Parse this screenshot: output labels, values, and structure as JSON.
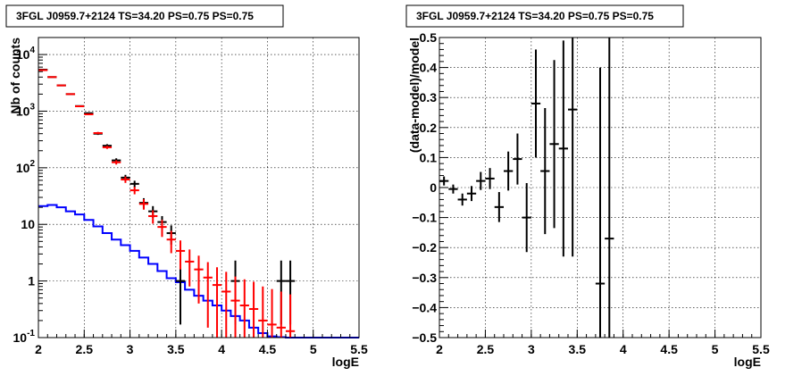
{
  "chart_data": [
    {
      "type": "step",
      "title": "3FGL J0959.7+2124 TS=34.20 PS=0.75 PS=0.75",
      "xlabel": "logE",
      "ylabel": "Nb of counts",
      "yscale": "log",
      "xlim": [
        2,
        5.5
      ],
      "ylim": [
        0.1,
        20000
      ],
      "xticks": [
        "2",
        "2.5",
        "3",
        "3.5",
        "4",
        "4.5",
        "5",
        "5.5"
      ],
      "yticks": [
        "10^-1",
        "1",
        "10",
        "10^2",
        "10^3",
        "10^4"
      ],
      "grid": true,
      "bin_width": 0.1,
      "series": [
        {
          "role": "data",
          "color": "#000000",
          "x": [
            2.05,
            2.15,
            2.25,
            2.35,
            2.45,
            2.55,
            2.65,
            2.75,
            2.85,
            2.95,
            3.05,
            3.15,
            3.25,
            3.35,
            3.45,
            3.55,
            4.15,
            4.65,
            4.75
          ],
          "y": [
            5400,
            4000,
            2850,
            2000,
            1230,
            920,
            400,
            245,
            135,
            67,
            52,
            24,
            17,
            11,
            7,
            1,
            1,
            1,
            1
          ],
          "yerr_low": [
            70,
            63,
            53,
            45,
            35,
            30,
            20,
            16,
            12,
            8,
            7,
            5,
            4,
            3,
            2.6,
            0.83,
            0.83,
            0.83,
            0.83
          ],
          "yerr_high": [
            70,
            63,
            53,
            45,
            35,
            30,
            20,
            16,
            12,
            8,
            7,
            5,
            4,
            3,
            2.6,
            1.3,
            1.3,
            1.3,
            1.3
          ]
        },
        {
          "role": "model",
          "color": "#ff0000",
          "x": [
            2.05,
            2.15,
            2.25,
            2.35,
            2.45,
            2.55,
            2.65,
            2.75,
            2.85,
            2.95,
            3.05,
            3.15,
            3.25,
            3.35,
            3.45,
            3.55,
            3.65,
            3.75,
            3.85,
            3.95,
            4.05,
            4.15,
            4.25,
            4.35,
            4.45,
            4.55,
            4.65,
            4.75
          ],
          "y": [
            5300,
            4000,
            2850,
            2000,
            1220,
            880,
            410,
            230,
            125,
            62,
            40,
            23,
            14,
            9,
            5.4,
            3.4,
            2.2,
            1.6,
            1.15,
            0.85,
            0.65,
            0.45,
            0.37,
            0.32,
            0.2,
            0.17,
            0.15,
            0.13
          ],
          "yerr_low": [
            70,
            63,
            53,
            45,
            35,
            30,
            20,
            15,
            11,
            8,
            6,
            4.8,
            3.7,
            3,
            2.3,
            1.8,
            1.4,
            1.2,
            1.0,
            0.85,
            0.65,
            0.45,
            0.37,
            0.32,
            0.2,
            0.17,
            0.15,
            0.13
          ],
          "yerr_high": [
            70,
            63,
            53,
            45,
            35,
            30,
            20,
            15,
            11,
            8,
            6,
            4.8,
            3.7,
            3,
            2.3,
            1.8,
            1.4,
            1.2,
            1.0,
            0.9,
            0.8,
            0.75,
            0.7,
            0.65,
            0.6,
            0.55,
            0.5,
            0.45
          ]
        },
        {
          "role": "background",
          "color": "#0000ff",
          "edges": [
            2.0,
            2.1,
            2.2,
            2.3,
            2.4,
            2.5,
            2.6,
            2.7,
            2.8,
            2.9,
            3.0,
            3.1,
            3.2,
            3.3,
            3.4,
            3.5,
            3.6,
            3.7,
            3.8,
            3.9,
            4.0,
            4.1,
            4.2,
            4.3,
            4.4,
            4.5,
            4.6,
            4.7,
            4.8,
            4.9,
            5.0,
            5.1,
            5.2,
            5.3,
            5.4,
            5.5
          ],
          "values": [
            21,
            22,
            20,
            17,
            15,
            12,
            9.2,
            7,
            5.4,
            4.3,
            3.4,
            2.6,
            2,
            1.5,
            1.12,
            0.95,
            0.7,
            0.55,
            0.45,
            0.37,
            0.3,
            0.24,
            0.2,
            0.15,
            0.12,
            0.105,
            0.102,
            0.1,
            0.1,
            0.1,
            0.1,
            0.1,
            0.1,
            0.1,
            0.1
          ]
        }
      ]
    },
    {
      "type": "scatter",
      "title": "3FGL J0959.7+2124 TS=34.20 PS=0.75 PS=0.75",
      "xlabel": "logE",
      "ylabel": "(data-model)/model",
      "xlim": [
        2,
        5.5
      ],
      "ylim": [
        -0.5,
        0.5
      ],
      "xticks": [
        "2",
        "2.5",
        "3",
        "3.5",
        "4",
        "4.5",
        "5",
        "5.5"
      ],
      "yticks": [
        "−0.5",
        "−0.4",
        "−0.3",
        "−0.2",
        "−0.1",
        "0",
        "0.1",
        "0.2",
        "0.3",
        "0.4",
        "0.5"
      ],
      "grid": true,
      "bin_width": 0.1,
      "series": [
        {
          "color": "#000000",
          "x": [
            2.05,
            2.15,
            2.25,
            2.35,
            2.45,
            2.55,
            2.65,
            2.75,
            2.85,
            2.95,
            3.05,
            3.15,
            3.25,
            3.35,
            3.45,
            3.75,
            3.85
          ],
          "y": [
            0.022,
            -0.005,
            -0.04,
            -0.02,
            0.022,
            0.03,
            -0.065,
            0.055,
            0.095,
            -0.1,
            0.28,
            0.055,
            0.145,
            0.13,
            0.26,
            -0.32,
            -0.17
          ],
          "yerr": [
            0.015,
            0.015,
            0.02,
            0.025,
            0.03,
            0.035,
            0.05,
            0.065,
            0.085,
            0.115,
            0.18,
            0.21,
            0.28,
            0.36,
            0.49,
            0.72,
            0.85
          ]
        }
      ]
    }
  ]
}
